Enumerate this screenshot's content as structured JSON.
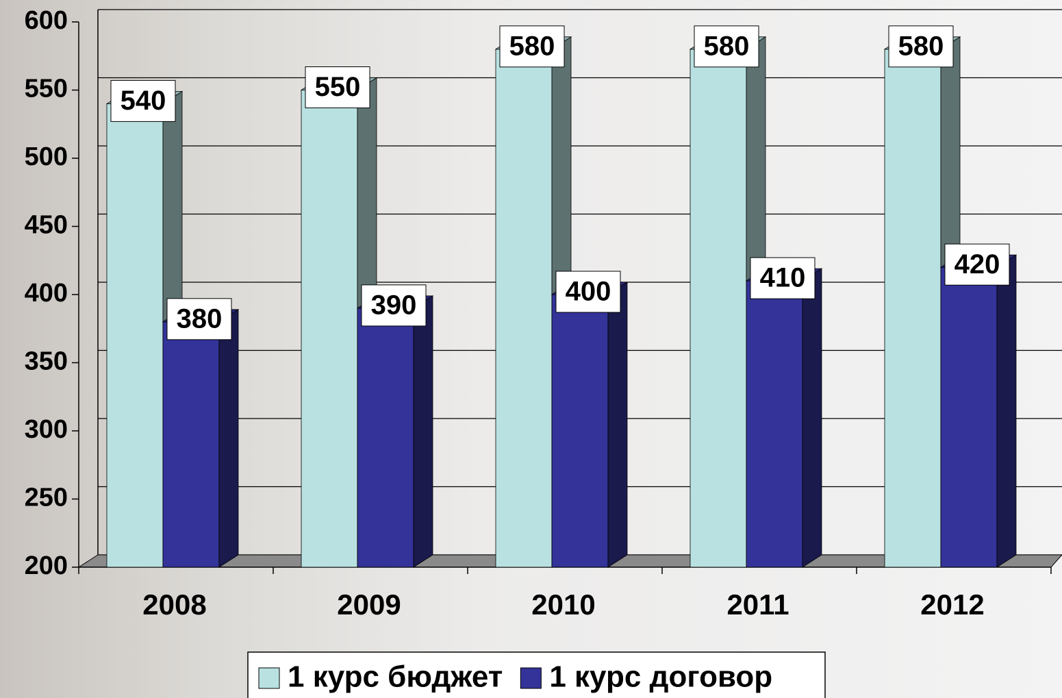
{
  "chart_data": {
    "type": "bar3d",
    "categories": [
      "2008",
      "2009",
      "2010",
      "2011",
      "2012"
    ],
    "series": [
      {
        "name": "1 курс бюджет",
        "color": "#b9e1e1",
        "values": [
          540,
          550,
          580,
          580,
          580
        ]
      },
      {
        "name": "1 курс договор",
        "color": "#333399",
        "values": [
          380,
          390,
          400,
          410,
          420
        ]
      }
    ],
    "ylim": [
      200,
      600
    ],
    "yticks": [
      200,
      250,
      300,
      350,
      400,
      450,
      500,
      550,
      600
    ],
    "grid": true
  }
}
